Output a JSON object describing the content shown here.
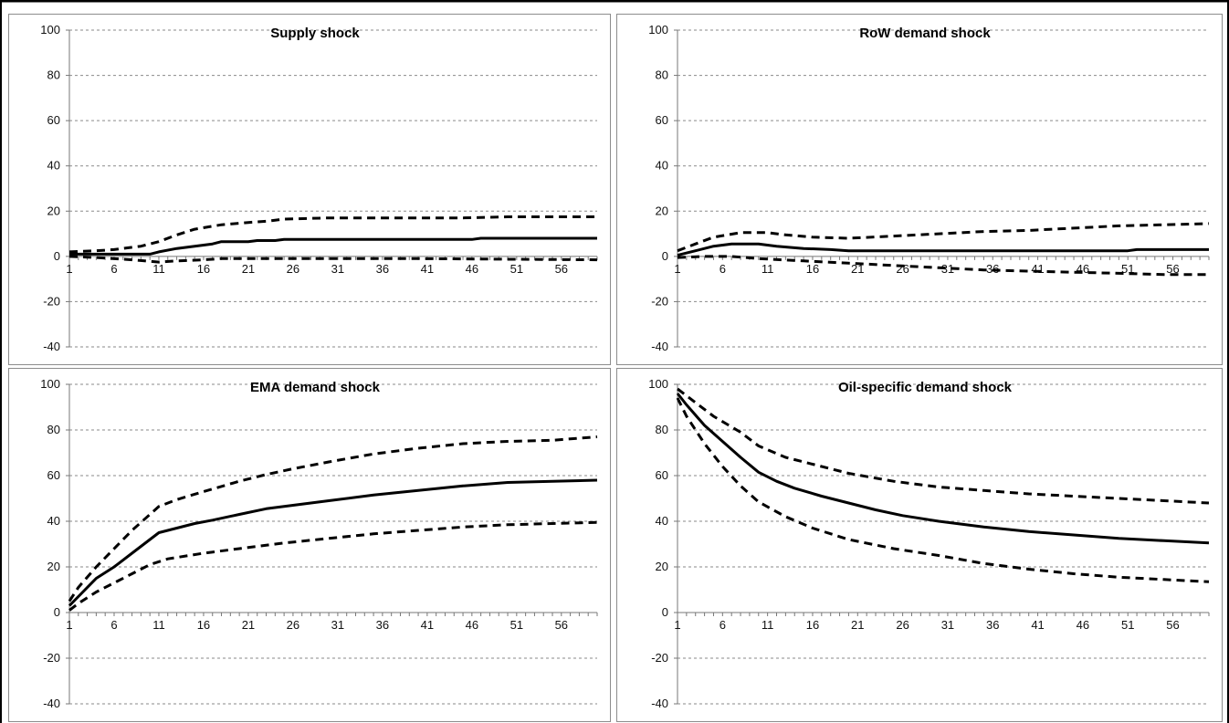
{
  "chart_data": [
    {
      "type": "line",
      "title": "Supply shock",
      "ylim": [
        -40,
        100
      ],
      "yticks": [
        100,
        80,
        60,
        40,
        20,
        0,
        -20,
        -40
      ],
      "xticks": [
        1,
        6,
        11,
        16,
        21,
        26,
        31,
        36,
        41,
        46,
        51,
        56
      ],
      "xlim": [
        1,
        60
      ],
      "grid": true,
      "series": [
        {
          "style": "solid",
          "points": [
            [
              1,
              1
            ],
            [
              4,
              1
            ],
            [
              10,
              1
            ],
            [
              11,
              2
            ],
            [
              13,
              3.5
            ],
            [
              15,
              4.5
            ],
            [
              17,
              5.5
            ],
            [
              18,
              6.5
            ],
            [
              21,
              6.5
            ],
            [
              22,
              7
            ],
            [
              24,
              7
            ],
            [
              25,
              7.5
            ],
            [
              46,
              7.5
            ],
            [
              47,
              8
            ],
            [
              60,
              8
            ]
          ]
        },
        {
          "style": "dashed",
          "points": [
            [
              1,
              2
            ],
            [
              4,
              2.5
            ],
            [
              6,
              3
            ],
            [
              9,
              4.5
            ],
            [
              11,
              6.5
            ],
            [
              13,
              9.5
            ],
            [
              15,
              12
            ],
            [
              18,
              14
            ],
            [
              21,
              15
            ],
            [
              23,
              15.5
            ],
            [
              25,
              16.5
            ],
            [
              30,
              17
            ],
            [
              45,
              17
            ],
            [
              50,
              17.5
            ],
            [
              60,
              17.5
            ]
          ]
        },
        {
          "style": "dashed",
          "points": [
            [
              1,
              0
            ],
            [
              4,
              -0.5
            ],
            [
              8,
              -1.5
            ],
            [
              11,
              -2.5
            ],
            [
              13,
              -2
            ],
            [
              16,
              -1.5
            ],
            [
              18,
              -1
            ],
            [
              30,
              -1
            ],
            [
              40,
              -1
            ],
            [
              60,
              -1.5
            ]
          ]
        }
      ]
    },
    {
      "type": "line",
      "title": "RoW demand shock",
      "ylim": [
        -40,
        100
      ],
      "yticks": [
        100,
        80,
        60,
        40,
        20,
        0,
        -20,
        -40
      ],
      "xticks": [
        1,
        6,
        11,
        16,
        21,
        26,
        31,
        36,
        41,
        46,
        51,
        56
      ],
      "xlim": [
        1,
        60
      ],
      "grid": true,
      "series": [
        {
          "style": "solid",
          "points": [
            [
              1,
              0.5
            ],
            [
              3,
              2.5
            ],
            [
              5,
              4.5
            ],
            [
              7,
              5.5
            ],
            [
              10,
              5.5
            ],
            [
              12,
              4.5
            ],
            [
              15,
              3.5
            ],
            [
              18,
              3
            ],
            [
              20,
              2.5
            ],
            [
              30,
              2.5
            ],
            [
              45,
              2.5
            ],
            [
              51,
              2.5
            ],
            [
              52,
              3
            ],
            [
              60,
              3
            ]
          ]
        },
        {
          "style": "dashed",
          "points": [
            [
              1,
              2.5
            ],
            [
              3,
              5.5
            ],
            [
              5,
              8.5
            ],
            [
              8,
              10.5
            ],
            [
              11,
              10.5
            ],
            [
              13,
              9.5
            ],
            [
              16,
              8.5
            ],
            [
              20,
              8
            ],
            [
              25,
              9
            ],
            [
              30,
              10
            ],
            [
              35,
              11
            ],
            [
              40,
              11.5
            ],
            [
              45,
              12.5
            ],
            [
              50,
              13.5
            ],
            [
              55,
              14
            ],
            [
              60,
              14.5
            ]
          ]
        },
        {
          "style": "dashed",
          "points": [
            [
              1,
              -0.5
            ],
            [
              4,
              0
            ],
            [
              7,
              0
            ],
            [
              10,
              -1
            ],
            [
              15,
              -2
            ],
            [
              20,
              -3
            ],
            [
              25,
              -4
            ],
            [
              30,
              -5
            ],
            [
              35,
              -6
            ],
            [
              40,
              -6.5
            ],
            [
              45,
              -7
            ],
            [
              50,
              -7.5
            ],
            [
              55,
              -8
            ],
            [
              60,
              -8
            ]
          ]
        }
      ]
    },
    {
      "type": "line",
      "title": "EMA demand shock",
      "ylim": [
        -40,
        100
      ],
      "yticks": [
        100,
        80,
        60,
        40,
        20,
        0,
        -20,
        -40
      ],
      "xticks": [
        1,
        6,
        11,
        16,
        21,
        26,
        31,
        36,
        41,
        46,
        51,
        56
      ],
      "xlim": [
        1,
        60
      ],
      "grid": true,
      "series": [
        {
          "style": "solid",
          "points": [
            [
              1,
              3
            ],
            [
              2,
              7
            ],
            [
              4,
              15
            ],
            [
              6,
              20
            ],
            [
              8,
              26
            ],
            [
              10,
              32
            ],
            [
              11,
              35
            ],
            [
              13,
              37
            ],
            [
              15,
              39
            ],
            [
              17,
              40.5
            ],
            [
              20,
              43
            ],
            [
              23,
              45.5
            ],
            [
              26,
              47
            ],
            [
              30,
              49
            ],
            [
              35,
              51.5
            ],
            [
              40,
              53.5
            ],
            [
              45,
              55.5
            ],
            [
              50,
              57
            ],
            [
              55,
              57.5
            ],
            [
              60,
              58
            ]
          ]
        },
        {
          "style": "dashed",
          "points": [
            [
              1,
              5
            ],
            [
              2,
              11
            ],
            [
              4,
              20
            ],
            [
              6,
              28
            ],
            [
              8,
              36
            ],
            [
              10,
              43
            ],
            [
              11,
              46.5
            ],
            [
              13,
              49.5
            ],
            [
              16,
              53
            ],
            [
              20,
              57.5
            ],
            [
              23,
              60.5
            ],
            [
              26,
              63
            ],
            [
              30,
              66
            ],
            [
              35,
              69.5
            ],
            [
              40,
              72
            ],
            [
              45,
              74
            ],
            [
              50,
              75
            ],
            [
              55,
              75.5
            ],
            [
              60,
              77
            ]
          ]
        },
        {
          "style": "dashed",
          "points": [
            [
              1,
              1
            ],
            [
              2,
              4
            ],
            [
              4,
              9
            ],
            [
              6,
              13
            ],
            [
              8,
              17
            ],
            [
              10,
              21
            ],
            [
              12,
              23.5
            ],
            [
              16,
              26
            ],
            [
              20,
              28
            ],
            [
              25,
              30.5
            ],
            [
              30,
              32.5
            ],
            [
              35,
              34.5
            ],
            [
              40,
              36
            ],
            [
              45,
              37.5
            ],
            [
              50,
              38.5
            ],
            [
              55,
              39
            ],
            [
              60,
              39.5
            ]
          ]
        }
      ]
    },
    {
      "type": "line",
      "title": "Oil-specific demand shock",
      "ylim": [
        -40,
        100
      ],
      "yticks": [
        100,
        80,
        60,
        40,
        20,
        0,
        -20,
        -40
      ],
      "xticks": [
        1,
        6,
        11,
        16,
        21,
        26,
        31,
        36,
        41,
        46,
        51,
        56
      ],
      "xlim": [
        1,
        60
      ],
      "grid": true,
      "series": [
        {
          "style": "solid",
          "points": [
            [
              1,
              96
            ],
            [
              2,
              91
            ],
            [
              4,
              82
            ],
            [
              6,
              75
            ],
            [
              8,
              68
            ],
            [
              10,
              61.5
            ],
            [
              12,
              57.5
            ],
            [
              14,
              54.5
            ],
            [
              17,
              51
            ],
            [
              20,
              48
            ],
            [
              23,
              45
            ],
            [
              26,
              42.5
            ],
            [
              30,
              40
            ],
            [
              35,
              37.5
            ],
            [
              40,
              35.5
            ],
            [
              45,
              34
            ],
            [
              50,
              32.5
            ],
            [
              55,
              31.5
            ],
            [
              60,
              30.5
            ]
          ]
        },
        {
          "style": "dashed",
          "points": [
            [
              1,
              98
            ],
            [
              3,
              92
            ],
            [
              5,
              86
            ],
            [
              8,
              79
            ],
            [
              10,
              73
            ],
            [
              13,
              68
            ],
            [
              16,
              65
            ],
            [
              20,
              61
            ],
            [
              25,
              57.5
            ],
            [
              30,
              55
            ],
            [
              35,
              53.5
            ],
            [
              40,
              52
            ],
            [
              45,
              51
            ],
            [
              50,
              50
            ],
            [
              55,
              49
            ],
            [
              60,
              48
            ]
          ]
        },
        {
          "style": "dashed",
          "points": [
            [
              1,
              94
            ],
            [
              2,
              86
            ],
            [
              4,
              74
            ],
            [
              6,
              64
            ],
            [
              8,
              55.5
            ],
            [
              10,
              48.5
            ],
            [
              13,
              42
            ],
            [
              16,
              37
            ],
            [
              20,
              32
            ],
            [
              25,
              28
            ],
            [
              30,
              25
            ],
            [
              35,
              21.5
            ],
            [
              40,
              19
            ],
            [
              45,
              17
            ],
            [
              50,
              15.5
            ],
            [
              55,
              14.5
            ],
            [
              60,
              13.5
            ]
          ]
        }
      ]
    }
  ]
}
